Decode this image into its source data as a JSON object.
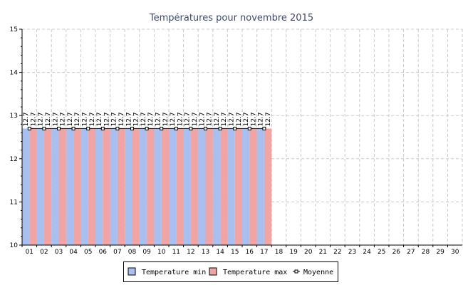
{
  "chart_data": {
    "type": "bar",
    "title": "Températures pour novembre 2015",
    "categories": [
      "01",
      "02",
      "03",
      "04",
      "05",
      "06",
      "07",
      "08",
      "09",
      "10",
      "11",
      "12",
      "13",
      "14",
      "15",
      "16",
      "17",
      "18",
      "19",
      "20",
      "21",
      "22",
      "23",
      "24",
      "25",
      "26",
      "27",
      "28",
      "29",
      "30"
    ],
    "series": [
      {
        "name": "Temperature min",
        "color": "#a8bff0",
        "values": [
          12.7,
          12.7,
          12.7,
          12.7,
          12.7,
          12.7,
          12.7,
          12.7,
          12.7,
          12.7,
          12.7,
          12.7,
          12.7,
          12.7,
          12.7,
          12.7,
          12.7,
          null,
          null,
          null,
          null,
          null,
          null,
          null,
          null,
          null,
          null,
          null,
          null,
          null
        ]
      },
      {
        "name": "Temperature max",
        "color": "#f0a4a4",
        "values": [
          12.7,
          12.7,
          12.7,
          12.7,
          12.7,
          12.7,
          12.7,
          12.7,
          12.7,
          12.7,
          12.7,
          12.7,
          12.7,
          12.7,
          12.7,
          12.7,
          12.7,
          null,
          null,
          null,
          null,
          null,
          null,
          null,
          null,
          null,
          null,
          null,
          null,
          null
        ]
      },
      {
        "name": "Moyenne",
        "type": "line",
        "color": "#000000",
        "values": [
          12.7,
          12.7,
          12.7,
          12.7,
          12.7,
          12.7,
          12.7,
          12.7,
          12.7,
          12.7,
          12.7,
          12.7,
          12.7,
          12.7,
          12.7,
          12.7,
          12.7,
          null,
          null,
          null,
          null,
          null,
          null,
          null,
          null,
          null,
          null,
          null,
          null,
          null
        ]
      }
    ],
    "data_labels": [
      "12.7",
      "12.7",
      "12.7",
      "12.7",
      "12.7",
      "12.7",
      "12.7",
      "12.7",
      "12.7",
      "12.7",
      "12.7",
      "12.7",
      "12.7",
      "12.7",
      "12.7",
      "12.7",
      "12.7"
    ],
    "ylim": [
      10,
      15
    ],
    "yticks": [
      "10",
      "11",
      "12",
      "13",
      "14",
      "15"
    ],
    "grid": true,
    "legend": "bottom"
  }
}
